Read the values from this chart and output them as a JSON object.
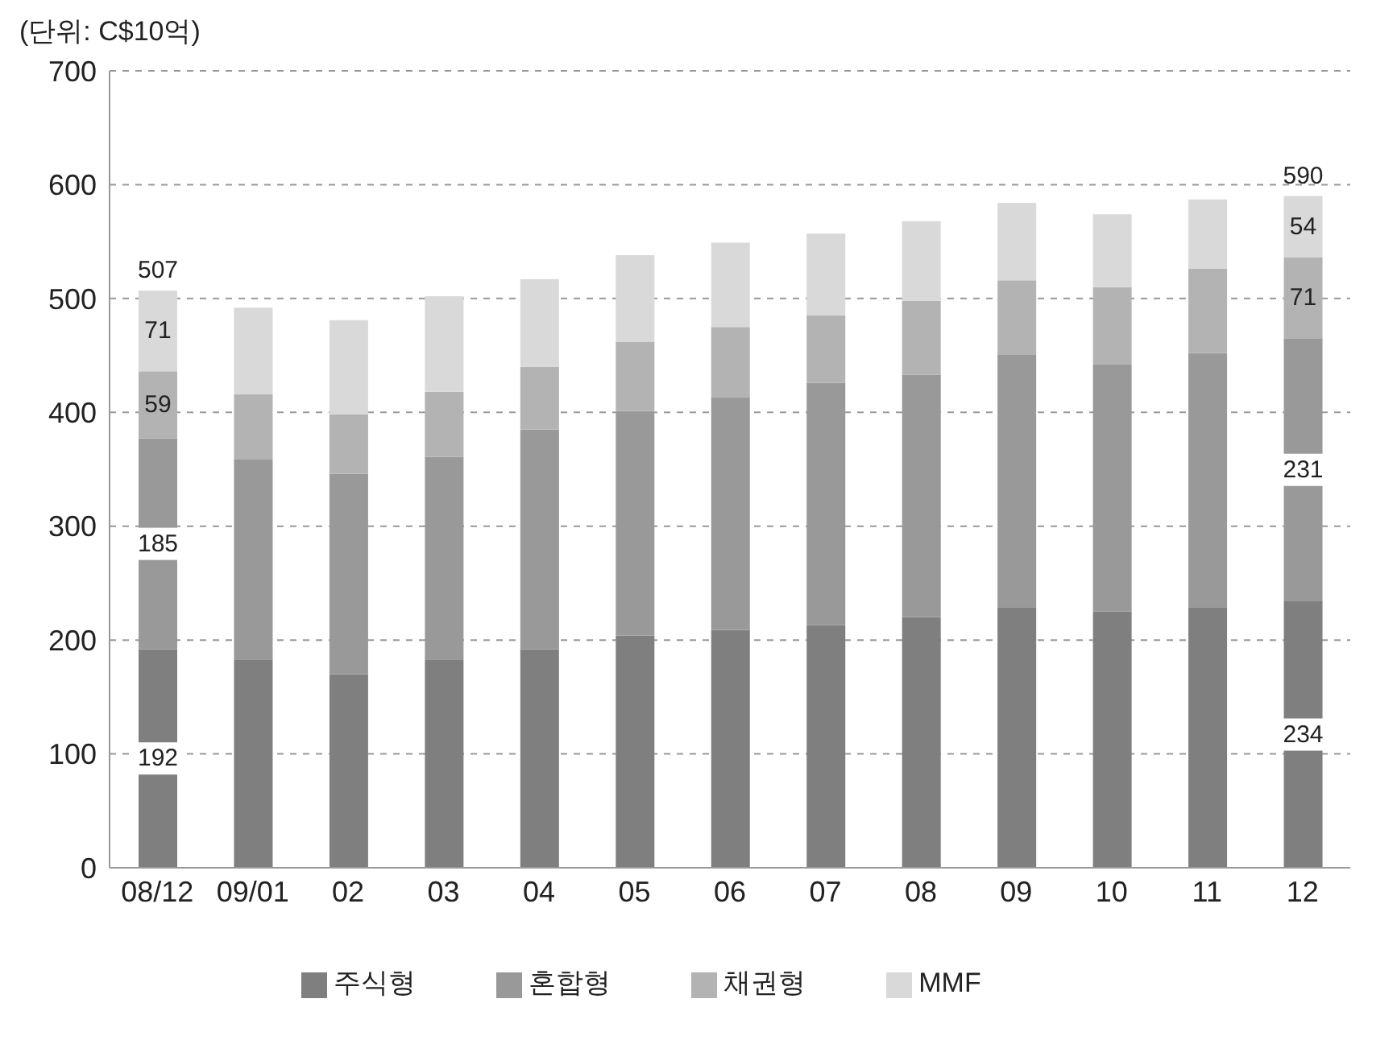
{
  "chart_data": {
    "type": "bar",
    "stacked": true,
    "ylabel": "(단위: C$10억)",
    "categories": [
      "08/12",
      "09/01",
      "02",
      "03",
      "04",
      "05",
      "06",
      "07",
      "08",
      "09",
      "10",
      "11",
      "12"
    ],
    "series": [
      {
        "name": "주식형",
        "color": "#7f7f7f",
        "values": [
          192,
          183,
          170,
          183,
          192,
          204,
          209,
          213,
          220,
          229,
          225,
          229,
          234
        ],
        "value_labels": [
          "192",
          null,
          null,
          null,
          null,
          null,
          null,
          null,
          null,
          null,
          null,
          null,
          "234"
        ]
      },
      {
        "name": "혼합형",
        "color": "#999999",
        "values": [
          185,
          176,
          176,
          178,
          193,
          197,
          204,
          213,
          213,
          222,
          217,
          223,
          231
        ],
        "value_labels": [
          "185",
          null,
          null,
          null,
          null,
          null,
          null,
          null,
          null,
          null,
          null,
          null,
          "231"
        ]
      },
      {
        "name": "채권형",
        "color": "#b3b3b3",
        "values": [
          59,
          57,
          52,
          57,
          55,
          61,
          62,
          59,
          65,
          65,
          68,
          74,
          71
        ],
        "value_labels": [
          "59",
          null,
          null,
          null,
          null,
          null,
          null,
          null,
          null,
          null,
          null,
          null,
          "71"
        ]
      },
      {
        "name": "MMF",
        "color": "#d9d9d9",
        "values": [
          71,
          76,
          83,
          84,
          77,
          76,
          74,
          72,
          70,
          68,
          64,
          61,
          54
        ],
        "value_labels": [
          "71",
          null,
          null,
          null,
          null,
          null,
          null,
          null,
          null,
          null,
          null,
          null,
          "54"
        ]
      }
    ],
    "totals": [
      "507",
      null,
      null,
      null,
      null,
      null,
      null,
      null,
      null,
      null,
      null,
      null,
      "590"
    ],
    "ylim": [
      0,
      700
    ],
    "yticks": [
      0,
      100,
      200,
      300,
      400,
      500,
      600,
      700
    ],
    "grid": "y",
    "legend": "bottom"
  }
}
